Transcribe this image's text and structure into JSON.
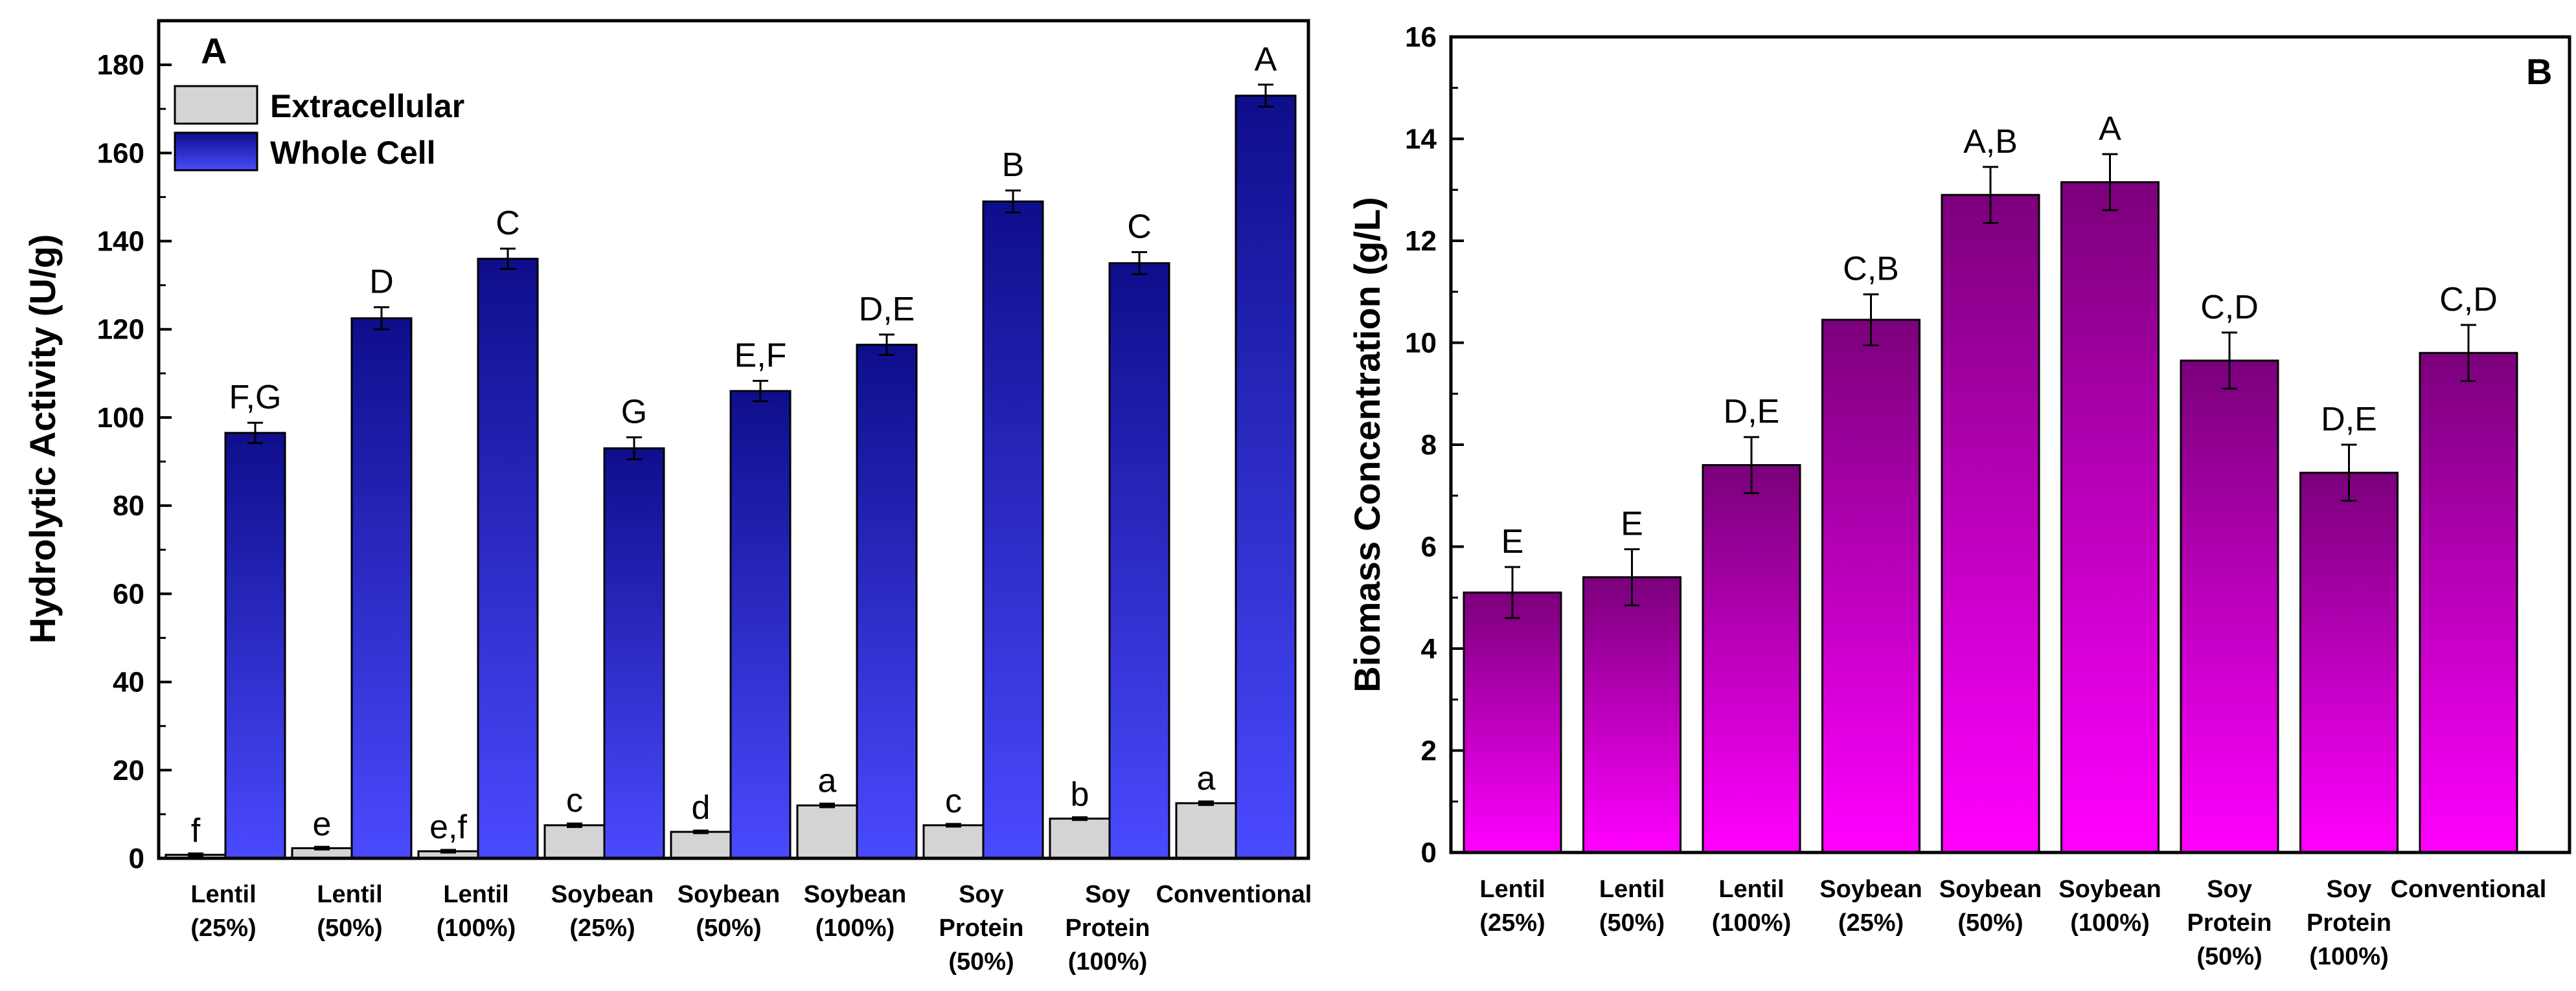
{
  "chart_data": [
    {
      "panel": "A",
      "type": "bar",
      "ylabel": "Hydrolytic Activity (U/g)",
      "ylim": [
        0,
        190
      ],
      "yticks": [
        0,
        20,
        40,
        60,
        80,
        100,
        120,
        140,
        160,
        180
      ],
      "categories": [
        [
          "Lentil",
          "(25%)"
        ],
        [
          "Lentil",
          "(50%)"
        ],
        [
          "Lentil",
          "(100%)"
        ],
        [
          "Soybean",
          "(25%)"
        ],
        [
          "Soybean",
          "(50%)"
        ],
        [
          "Soybean",
          "(100%)"
        ],
        [
          "Soy",
          "Protein",
          "(50%)"
        ],
        [
          "Soy",
          "Protein",
          "(100%)"
        ],
        [
          "Conventional"
        ]
      ],
      "legend_position": "top-left",
      "series": [
        {
          "name": "Extracellular",
          "color": "#d4d4d4",
          "values": [
            0.8,
            2.3,
            1.6,
            7.5,
            6.0,
            12.0,
            7.5,
            9.0,
            12.5
          ],
          "errors": [
            0.3,
            0.3,
            0.3,
            0.4,
            0.3,
            0.4,
            0.3,
            0.3,
            0.4
          ],
          "letters": [
            "f",
            "e",
            "e,f",
            "c",
            "d",
            "a",
            "c",
            "b",
            "a"
          ]
        },
        {
          "name": "Whole Cell",
          "color_top": "#0e0e8c",
          "color_bottom": "#4a4aff",
          "values": [
            96.5,
            122.5,
            136.0,
            93.0,
            106.0,
            116.5,
            149.0,
            135.0,
            173.0
          ],
          "errors": [
            2.3,
            2.5,
            2.3,
            2.5,
            2.3,
            2.3,
            2.5,
            2.5,
            2.5
          ],
          "letters": [
            "F,G",
            "D",
            "C",
            "G",
            "E,F",
            "D,E",
            "B",
            "C",
            "A"
          ]
        }
      ]
    },
    {
      "panel": "B",
      "type": "bar",
      "ylabel": "Biomass Concentration (g/L)",
      "ylim": [
        0,
        16
      ],
      "yticks": [
        0,
        2,
        4,
        6,
        8,
        10,
        12,
        14,
        16
      ],
      "categories": [
        [
          "Lentil",
          "(25%)"
        ],
        [
          "Lentil",
          "(50%)"
        ],
        [
          "Lentil",
          "(100%)"
        ],
        [
          "Soybean",
          "(25%)"
        ],
        [
          "Soybean",
          "(50%)"
        ],
        [
          "Soybean",
          "(100%)"
        ],
        [
          "Soy",
          "Protein",
          "(50%)"
        ],
        [
          "Soy",
          "Protein",
          "(100%)"
        ],
        [
          "Conventional"
        ]
      ],
      "series": [
        {
          "name": "Biomass",
          "color_top": "#7b007b",
          "color_bottom": "#ff00ff",
          "values": [
            5.1,
            5.4,
            7.6,
            10.45,
            12.9,
            13.15,
            9.65,
            7.45,
            9.8
          ],
          "errors": [
            0.5,
            0.55,
            0.55,
            0.5,
            0.55,
            0.55,
            0.55,
            0.55,
            0.55
          ],
          "letters": [
            "E",
            "E",
            "D,E",
            "C,B",
            "A,B",
            "A",
            "C,D",
            "D,E",
            "C,D"
          ]
        }
      ]
    }
  ]
}
